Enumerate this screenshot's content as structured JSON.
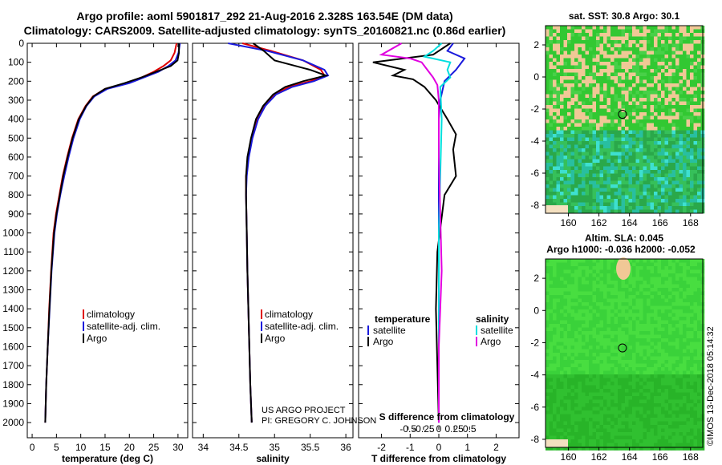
{
  "header": {
    "line1": "Argo profile: aoml 5901817_292 21-Aug-2016 2.328S 163.54E (DM data)",
    "line2": "Climatology: CARS2009. Satellite-adjusted climatology: synTS_20160821.nc (0.86d earlier)"
  },
  "credits": {
    "project": "US ARGO PROJECT",
    "pi": "PI: GREGORY C. JOHNSON",
    "imos": "©IMOS 13-Dec-2018 05:14:32"
  },
  "colors": {
    "climatology": "#e00000",
    "satellite": "#1a1adc",
    "argo": "#000000",
    "sat_diff_s": "#00dede",
    "argo_diff_s": "#e000e0",
    "land": "#f0c896"
  },
  "chart_data": [
    {
      "id": "temperature",
      "type": "line",
      "xlabel": "temperature (deg C)",
      "ylabel": "",
      "xlim": [
        -1,
        32
      ],
      "ylim": [
        2080,
        0
      ],
      "xticks": [
        0,
        5,
        10,
        15,
        20,
        25,
        30
      ],
      "yticks": [
        0,
        100,
        200,
        300,
        400,
        500,
        600,
        700,
        800,
        900,
        1000,
        1100,
        1200,
        1300,
        1400,
        1500,
        1600,
        1700,
        1800,
        1900,
        2000
      ],
      "legend": [
        "climatology",
        "satellite-adj. clim.",
        "Argo"
      ],
      "series": [
        {
          "name": "climatology",
          "color": "#e00000",
          "x": [
            29.7,
            29.3,
            28.5,
            27,
            25,
            22.5,
            19.5,
            15,
            12.5,
            11,
            9.5,
            8.2,
            7.2,
            6.3,
            5.6,
            4.9,
            4.4,
            3.9,
            3.5,
            3.2,
            2.9,
            2.7
          ],
          "depth": [
            0,
            50,
            90,
            120,
            150,
            180,
            210,
            240,
            280,
            330,
            400,
            500,
            600,
            700,
            800,
            900,
            1000,
            1200,
            1400,
            1600,
            1800,
            2000
          ]
        },
        {
          "name": "satellite-adj. clim.",
          "color": "#1a1adc",
          "x": [
            30.4,
            30.1,
            29.5,
            28,
            26,
            23,
            20,
            15.5,
            12.8,
            11.2,
            9.8,
            8.5,
            7.5,
            6.6,
            5.8,
            5.1,
            4.6,
            4,
            3.6,
            3.2,
            2.9,
            2.7
          ],
          "depth": [
            0,
            50,
            90,
            120,
            150,
            180,
            210,
            240,
            280,
            330,
            400,
            500,
            600,
            700,
            800,
            900,
            1000,
            1200,
            1400,
            1600,
            1800,
            2000
          ]
        },
        {
          "name": "Argo",
          "color": "#000000",
          "x": [
            30.2,
            30.2,
            29.9,
            28.5,
            25.5,
            22.5,
            19,
            15,
            12.6,
            11.1,
            9.6,
            8.3,
            7.3,
            6.4,
            5.7,
            5,
            4.5,
            3.95,
            3.55,
            3.2,
            2.9,
            2.7
          ],
          "depth": [
            0,
            50,
            90,
            120,
            150,
            180,
            210,
            240,
            280,
            330,
            400,
            500,
            600,
            700,
            800,
            900,
            1000,
            1200,
            1400,
            1600,
            1800,
            2000
          ]
        }
      ]
    },
    {
      "id": "salinity",
      "type": "line",
      "xlabel": "salinity",
      "xlim": [
        33.85,
        36.1
      ],
      "ylim": [
        2080,
        0
      ],
      "xticks": [
        34,
        34.5,
        35,
        35.5,
        36
      ],
      "legend": [
        "climatology",
        "satellite-adj. clim.",
        "Argo"
      ],
      "series": [
        {
          "name": "climatology",
          "color": "#e00000",
          "x": [
            34.55,
            34.95,
            35.4,
            35.65,
            35.7,
            35.5,
            35.2,
            35.0,
            34.85,
            34.75,
            34.68,
            34.63,
            34.6,
            34.6,
            34.61,
            34.62,
            34.64,
            34.66,
            34.68
          ],
          "depth": [
            0,
            40,
            90,
            140,
            170,
            200,
            230,
            270,
            330,
            400,
            500,
            600,
            700,
            800,
            1000,
            1200,
            1500,
            1800,
            2000
          ]
        },
        {
          "name": "satellite-adj. clim.",
          "color": "#1a1adc",
          "x": [
            34.35,
            34.9,
            35.4,
            35.7,
            35.75,
            35.55,
            35.25,
            35.02,
            34.87,
            34.77,
            34.69,
            34.64,
            34.61,
            34.6,
            34.61,
            34.62,
            34.64,
            34.66,
            34.68
          ],
          "depth": [
            0,
            40,
            90,
            140,
            170,
            200,
            230,
            270,
            330,
            400,
            500,
            600,
            700,
            800,
            1000,
            1200,
            1500,
            1800,
            2000
          ]
        },
        {
          "name": "Argo",
          "color": "#000000",
          "x": [
            34.7,
            34.85,
            35.0,
            35.5,
            35.72,
            35.4,
            35.15,
            34.98,
            34.84,
            34.74,
            34.67,
            34.62,
            34.6,
            34.6,
            34.61,
            34.62,
            34.64,
            34.66,
            34.68
          ],
          "depth": [
            0,
            40,
            90,
            140,
            170,
            200,
            230,
            270,
            330,
            400,
            500,
            600,
            700,
            800,
            1000,
            1200,
            1500,
            1800,
            2000
          ]
        }
      ]
    },
    {
      "id": "differences",
      "type": "line",
      "xlabel": "T difference from climatology",
      "xlabel_top": "S difference from climatology",
      "xlim": [
        -2.8,
        2.8
      ],
      "ylim": [
        2080,
        0
      ],
      "xticks": [
        -2,
        -1,
        0,
        1,
        2
      ],
      "sticks": [
        -0.5,
        -0.25,
        0,
        0.25,
        0.5
      ],
      "sticklabels": [
        "-0.5",
        "-0.25",
        "0",
        "0.25",
        "0.5"
      ],
      "legend_left_title": "temperature",
      "legend_right_title": "salinity",
      "legend_left": [
        "satellite",
        "Argo"
      ],
      "legend_right": [
        "satellite",
        "Argo"
      ],
      "series": [
        {
          "name": "T satellite",
          "color": "#1a1adc",
          "x": [
            0.5,
            0.3,
            0.9,
            0.6,
            0.2,
            0.05,
            0,
            0,
            0,
            0
          ],
          "depth": [
            0,
            40,
            80,
            140,
            200,
            300,
            400,
            800,
            1400,
            2000
          ]
        },
        {
          "name": "T Argo",
          "color": "#000000",
          "x": [
            0.4,
            -0.2,
            -2.3,
            -1.2,
            -1.6,
            -0.9,
            -0.5,
            -0.1,
            0.3,
            0.6,
            0.5,
            0.6,
            0.2,
            -0.05,
            -0.1,
            -0.05,
            0
          ],
          "depth": [
            0,
            60,
            100,
            140,
            170,
            190,
            230,
            300,
            400,
            480,
            560,
            700,
            800,
            1100,
            1400,
            1700,
            2000
          ]
        },
        {
          "name": "S satellite",
          "color": "#00dede",
          "x": [
            0.1,
            -0.2,
            -0.5,
            0.4,
            0.3,
            0.4,
            0.05,
            0.1,
            0,
            0
          ],
          "depth": [
            0,
            40,
            70,
            100,
            140,
            180,
            230,
            400,
            1000,
            2000
          ]
        },
        {
          "name": "S Argo",
          "color": "#e000e0",
          "x": [
            -1.3,
            -2.0,
            -1.0,
            -0.6,
            -0.4,
            -0.2,
            -0.05,
            0,
            0,
            0.1,
            0,
            0
          ],
          "depth": [
            0,
            60,
            80,
            100,
            140,
            180,
            220,
            300,
            600,
            1200,
            1600,
            2000
          ]
        }
      ]
    },
    {
      "id": "sst_map",
      "type": "heatmap",
      "title": "sat. SST: 30.8 Argo: 30.1",
      "xlim": [
        158.5,
        168.8
      ],
      "ylim": [
        -8.5,
        3.2
      ],
      "xticks": [
        160,
        162,
        164,
        166,
        168
      ],
      "yticks": [
        2,
        0,
        -2,
        -4,
        -6,
        -8
      ],
      "marker": {
        "lon": 163.54,
        "lat": -2.328
      }
    },
    {
      "id": "sla_map",
      "type": "heatmap",
      "title": "Altim. SLA: 0.045",
      "subtitle": "Argo h1000: -0.036 h2000: -0.052",
      "xlim": [
        158.5,
        168.8
      ],
      "ylim": [
        -8.5,
        3.2
      ],
      "xticks": [
        160,
        162,
        164,
        166,
        168
      ],
      "yticks": [
        2,
        0,
        -2,
        -4,
        -6,
        -8
      ],
      "marker": {
        "lon": 163.54,
        "lat": -2.328
      }
    }
  ]
}
